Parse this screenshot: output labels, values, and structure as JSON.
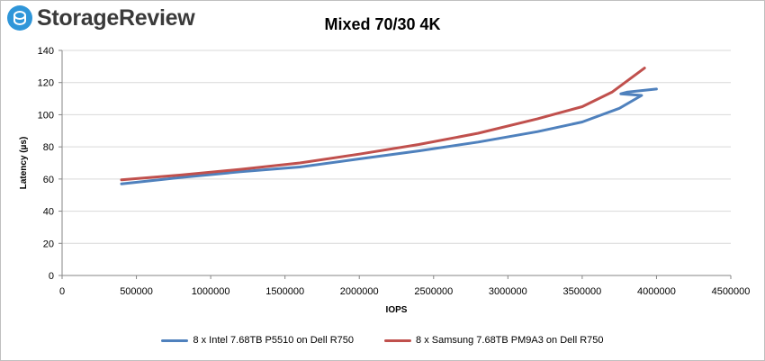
{
  "brand": {
    "name": "StorageReview"
  },
  "chart_data": {
    "type": "line",
    "title": "Mixed 70/30 4K",
    "xlabel": "IOPS",
    "ylabel": "Latency (µs)",
    "xlim": [
      0,
      4500000
    ],
    "ylim": [
      0,
      140
    ],
    "x_ticks": [
      0,
      500000,
      1000000,
      1500000,
      2000000,
      2500000,
      3000000,
      3500000,
      4000000,
      4500000
    ],
    "y_ticks": [
      0,
      20,
      40,
      60,
      80,
      100,
      120,
      140
    ],
    "grid": "horizontal",
    "legend": "bottom",
    "series": [
      {
        "name": "8 x Intel 7.68TB P5510 on Dell R750",
        "color": "#4f81bd",
        "x": [
          400000,
          800000,
          1200000,
          1600000,
          2000000,
          2400000,
          2800000,
          3200000,
          3500000,
          3750000,
          3900000,
          3760000,
          3800000,
          4000000
        ],
        "y": [
          57,
          61,
          64.5,
          67.5,
          72.5,
          77.5,
          83,
          89.5,
          95.5,
          104,
          112,
          113,
          114,
          116
        ]
      },
      {
        "name": "8 x Samsung 7.68TB PM9A3 on Dell R750",
        "color": "#c0504d",
        "x": [
          400000,
          800000,
          1200000,
          1600000,
          2000000,
          2400000,
          2800000,
          3200000,
          3500000,
          3700000,
          3920000
        ],
        "y": [
          59.5,
          62.5,
          66,
          70,
          75.5,
          81.5,
          88.5,
          97.5,
          105,
          114,
          129
        ]
      }
    ]
  }
}
